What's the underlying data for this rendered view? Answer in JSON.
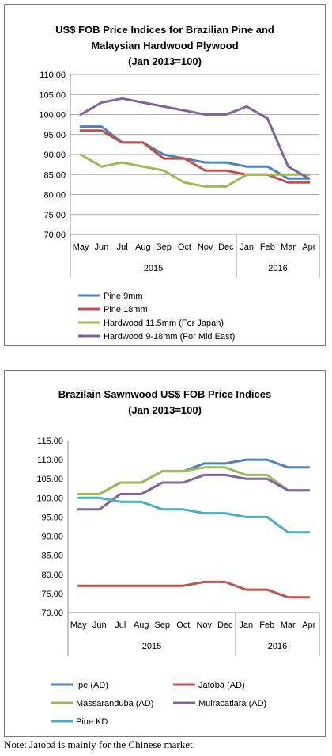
{
  "note": "Note: Jatobá is mainly for the Chinese market.",
  "chart_data": [
    {
      "type": "line",
      "title": "US$ FOB Price Indices for Brazilian Pine and Malaysian Hardwood Plywood",
      "title_line1": "US$ FOB Price Indices for Brazilian Pine and",
      "title_line2": "Malaysian Hardwood Plywood",
      "subtitle": "(Jan 2013=100)",
      "categories": [
        "May",
        "Jun",
        "Jul",
        "Aug",
        "Sep",
        "Oct",
        "Nov",
        "Dec",
        "Jan",
        "Feb",
        "Mar",
        "Apr"
      ],
      "x_groups": [
        {
          "label": "2015",
          "start": 0,
          "end": 7
        },
        {
          "label": "2016",
          "start": 8,
          "end": 11
        }
      ],
      "ylim": [
        70,
        110
      ],
      "yticks": [
        "70.00",
        "75.00",
        "80.00",
        "85.00",
        "90.00",
        "95.00",
        "100.00",
        "105.00",
        "110.00"
      ],
      "ytick_values": [
        70,
        75,
        80,
        85,
        90,
        95,
        100,
        105,
        110
      ],
      "grid": true,
      "legend_position": "bottom",
      "series": [
        {
          "name": "Pine 9mm",
          "color": "#4f81bd",
          "values": [
            97,
            97,
            93,
            93,
            90,
            89,
            88,
            88,
            87,
            87,
            84,
            84
          ]
        },
        {
          "name": "Pine 18mm",
          "color": "#c0504d",
          "values": [
            96,
            96,
            93,
            93,
            89,
            89,
            86,
            86,
            85,
            85,
            83,
            83
          ]
        },
        {
          "name": "Hardwood 11.5mm (For Japan)",
          "color": "#9bbb59",
          "values": [
            90,
            87,
            88,
            87,
            86,
            83,
            82,
            82,
            85,
            85,
            85,
            85
          ]
        },
        {
          "name": "Hardwood 9-18mm (For Mid East)",
          "color": "#8064a2",
          "values": [
            100,
            103,
            104,
            103,
            102,
            101,
            100,
            100,
            102,
            99,
            87,
            84
          ]
        }
      ]
    },
    {
      "type": "line",
      "title": "Brazilain Sawnwood US$ FOB Price Indices",
      "subtitle": "(Jan 2013=100)",
      "categories": [
        "May",
        "Jun",
        "Jul",
        "Aug",
        "Sep",
        "Oct",
        "Nov",
        "Dec",
        "Jan",
        "Feb",
        "Mar",
        "Apr"
      ],
      "x_groups": [
        {
          "label": "2015",
          "start": 0,
          "end": 7
        },
        {
          "label": "2016",
          "start": 8,
          "end": 11
        }
      ],
      "ylim": [
        70,
        115
      ],
      "yticks": [
        "70.00",
        "75.00",
        "80.00",
        "85.00",
        "90.00",
        "95.00",
        "100.00",
        "105.00",
        "110.00",
        "115.00"
      ],
      "ytick_values": [
        70,
        75,
        80,
        85,
        90,
        95,
        100,
        105,
        110,
        115
      ],
      "grid": false,
      "legend_position": "bottom",
      "series": [
        {
          "name": "Ipe (AD)",
          "color": "#4f81bd",
          "values": [
            101,
            101,
            104,
            104,
            107,
            107,
            109,
            109,
            110,
            110,
            108,
            108
          ]
        },
        {
          "name": "Jatobá (AD)",
          "color": "#c0504d",
          "values": [
            77,
            77,
            77,
            77,
            77,
            77,
            78,
            78,
            76,
            76,
            74,
            74
          ]
        },
        {
          "name": "Massaranduba (AD)",
          "color": "#9bbb59",
          "values": [
            101,
            101,
            104,
            104,
            107,
            107,
            108,
            108,
            106,
            106,
            102,
            102
          ]
        },
        {
          "name": "Muiracatiara (AD)",
          "color": "#8064a2",
          "values": [
            97,
            97,
            101,
            101,
            104,
            104,
            106,
            106,
            105,
            105,
            102,
            102
          ]
        },
        {
          "name": "Pine KD",
          "color": "#4bacc6",
          "values": [
            100,
            100,
            99,
            99,
            97,
            97,
            96,
            96,
            95,
            95,
            91,
            91
          ]
        }
      ]
    }
  ]
}
